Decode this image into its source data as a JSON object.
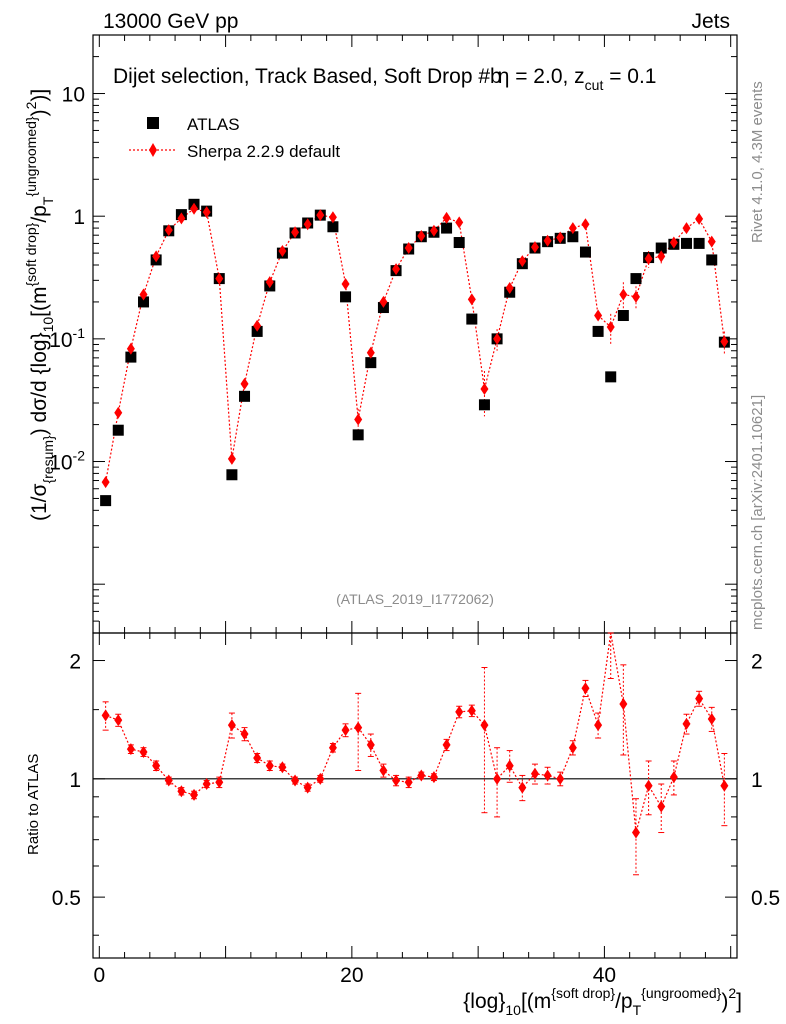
{
  "header": {
    "left": "13000 GeV pp",
    "right": "Jets"
  },
  "side_labels": {
    "rivet": "Rivet 4.1.0,  4.3M events",
    "mcplots": "mcplots.cern.ch [arXiv:2401.10621]"
  },
  "chart_data": {
    "type": "scatter",
    "title": "Dijet selection, Track Based, Soft Drop #b",
    "title_extra": "η = 2.0, z",
    "title_sub": "cut",
    "title_tail": " = 0.1",
    "analysis_tag": "(ATLAS_2019_I1772062)",
    "ylabel": "(1/σ{resum}) dσ/d {log}10[(m{soft drop}/pT{ungroomed})2]",
    "ratio_ylabel": "Ratio to ATLAS",
    "xlabel": "{log}10[(m{soft drop}/pT{ungroomed})2]",
    "x_label_parts": {
      "a": "{log}",
      "a_sub": "10",
      "b": "[(m",
      "b_sup": "{soft drop}",
      "c": "/p",
      "c_sub": "T",
      "c_sup": "{ungroomed}",
      "d": ")",
      "d_sup": "2",
      "e": "]"
    },
    "y_label_parts": {
      "a": "(1/σ",
      "a_sub": "{resum}",
      "b": ") dσ/d {log}",
      "b_sub": "10",
      "c": "[(m",
      "c_sup": "{soft drop}",
      "d": "/p",
      "d_sub": "T",
      "d_sup": "{ungroomed}",
      "e": ")",
      "e_sup": "2",
      "f": ")]"
    },
    "xlim": [
      -0.5,
      50.5
    ],
    "ylim_main": [
      0.0004,
      30
    ],
    "ylim_ratio": [
      0.35,
      2.35
    ],
    "x_ticks": [
      "0",
      "20",
      "40"
    ],
    "x_tick_values": [
      0,
      20,
      40
    ],
    "y_ticks_main": [
      {
        "base": "10",
        "exp": "-2",
        "value": 0.01
      },
      {
        "base": "10",
        "exp": "-1",
        "value": 0.1
      },
      {
        "base": "1",
        "exp": "",
        "value": 1
      },
      {
        "base": "10",
        "exp": "",
        "value": 10
      }
    ],
    "y_ticks_ratio": [
      "0.5",
      "1",
      "2"
    ],
    "y_tick_values_ratio": [
      0.5,
      1,
      2
    ],
    "legend": [
      {
        "name": "ATLAS",
        "color": "#000000",
        "marker": "square"
      },
      {
        "name": "Sherpa 2.2.9 default",
        "color": "#ff0000",
        "marker": "diamond",
        "line": "dotted"
      }
    ],
    "series": [
      {
        "name": "ATLAS",
        "x": [
          0.5,
          1.5,
          2.5,
          3.5,
          4.5,
          5.5,
          6.5,
          7.5,
          8.5,
          9.5,
          10.5,
          11.5,
          12.5,
          13.5,
          14.5,
          15.5,
          16.5,
          17.5,
          18.5,
          19.5,
          20.5,
          21.5,
          22.5,
          23.5,
          24.5,
          25.5,
          26.5,
          27.5,
          28.5,
          29.5,
          30.5,
          31.5,
          32.5,
          33.5,
          34.5,
          35.5,
          36.5,
          37.5,
          38.5,
          39.5,
          40.5,
          41.5,
          42.5,
          43.5,
          44.5,
          45.5,
          46.5,
          47.5,
          48.5,
          49.5
        ],
        "values": [
          0.0048,
          0.018,
          0.071,
          0.2,
          0.44,
          0.76,
          1.03,
          1.25,
          1.1,
          0.31,
          0.0078,
          0.034,
          0.115,
          0.27,
          0.5,
          0.73,
          0.88,
          1.02,
          0.82,
          0.22,
          0.0165,
          0.064,
          0.18,
          0.36,
          0.54,
          0.68,
          0.74,
          0.8,
          0.61,
          0.145,
          0.029,
          0.1,
          0.24,
          0.41,
          0.55,
          0.62,
          0.66,
          0.68,
          0.51,
          0.115,
          0.049,
          0.155,
          0.31,
          0.46,
          0.55,
          0.59,
          0.6,
          0.6,
          0.44,
          0.094
        ]
      },
      {
        "name": "Sherpa 2.2.9 default",
        "x": [
          0.5,
          1.5,
          2.5,
          3.5,
          4.5,
          5.5,
          6.5,
          7.5,
          8.5,
          9.5,
          10.5,
          11.5,
          12.5,
          13.5,
          14.5,
          15.5,
          16.5,
          17.5,
          18.5,
          19.5,
          20.5,
          21.5,
          22.5,
          23.5,
          24.5,
          25.5,
          26.5,
          27.5,
          28.5,
          29.5,
          30.5,
          31.5,
          32.5,
          33.5,
          34.5,
          35.5,
          36.5,
          37.5,
          38.5,
          39.5,
          40.5,
          41.5,
          42.5,
          43.5,
          44.5,
          45.5,
          46.5,
          47.5,
          48.5,
          49.5
        ],
        "values": [
          0.0068,
          0.025,
          0.083,
          0.23,
          0.47,
          0.77,
          0.96,
          1.15,
          1.08,
          0.31,
          0.0105,
          0.043,
          0.128,
          0.29,
          0.52,
          0.74,
          0.86,
          1.02,
          0.98,
          0.28,
          0.022,
          0.077,
          0.2,
          0.37,
          0.55,
          0.69,
          0.76,
          0.97,
          0.89,
          0.21,
          0.039,
          0.1,
          0.26,
          0.43,
          0.56,
          0.63,
          0.67,
          0.8,
          0.86,
          0.155,
          0.125,
          0.23,
          0.22,
          0.45,
          0.47,
          0.61,
          0.8,
          0.95,
          0.62,
          0.095
        ],
        "ratio": [
          1.45,
          1.41,
          1.19,
          1.17,
          1.08,
          0.99,
          0.93,
          0.91,
          0.97,
          0.98,
          1.37,
          1.3,
          1.13,
          1.08,
          1.07,
          0.99,
          0.95,
          1.0,
          1.2,
          1.33,
          1.35,
          1.22,
          1.05,
          0.99,
          0.98,
          1.02,
          1.01,
          1.22,
          1.48,
          1.49,
          1.37,
          1.0,
          1.08,
          0.95,
          1.03,
          1.02,
          1.0,
          1.2,
          1.7,
          1.37,
          2.5,
          1.55,
          0.73,
          0.96,
          0.85,
          1.01,
          1.38,
          1.6,
          1.42,
          0.96
        ],
        "ratio_err": [
          0.12,
          0.05,
          0.03,
          0.03,
          0.03,
          0.02,
          0.02,
          0.02,
          0.02,
          0.03,
          0.1,
          0.05,
          0.03,
          0.03,
          0.02,
          0.02,
          0.02,
          0.02,
          0.03,
          0.05,
          0.3,
          0.08,
          0.04,
          0.03,
          0.03,
          0.02,
          0.02,
          0.04,
          0.05,
          0.05,
          0.55,
          0.2,
          0.1,
          0.07,
          0.06,
          0.05,
          0.04,
          0.05,
          0.08,
          0.1,
          0.7,
          0.4,
          0.16,
          0.15,
          0.12,
          0.1,
          0.08,
          0.07,
          0.1,
          0.2
        ]
      }
    ]
  }
}
